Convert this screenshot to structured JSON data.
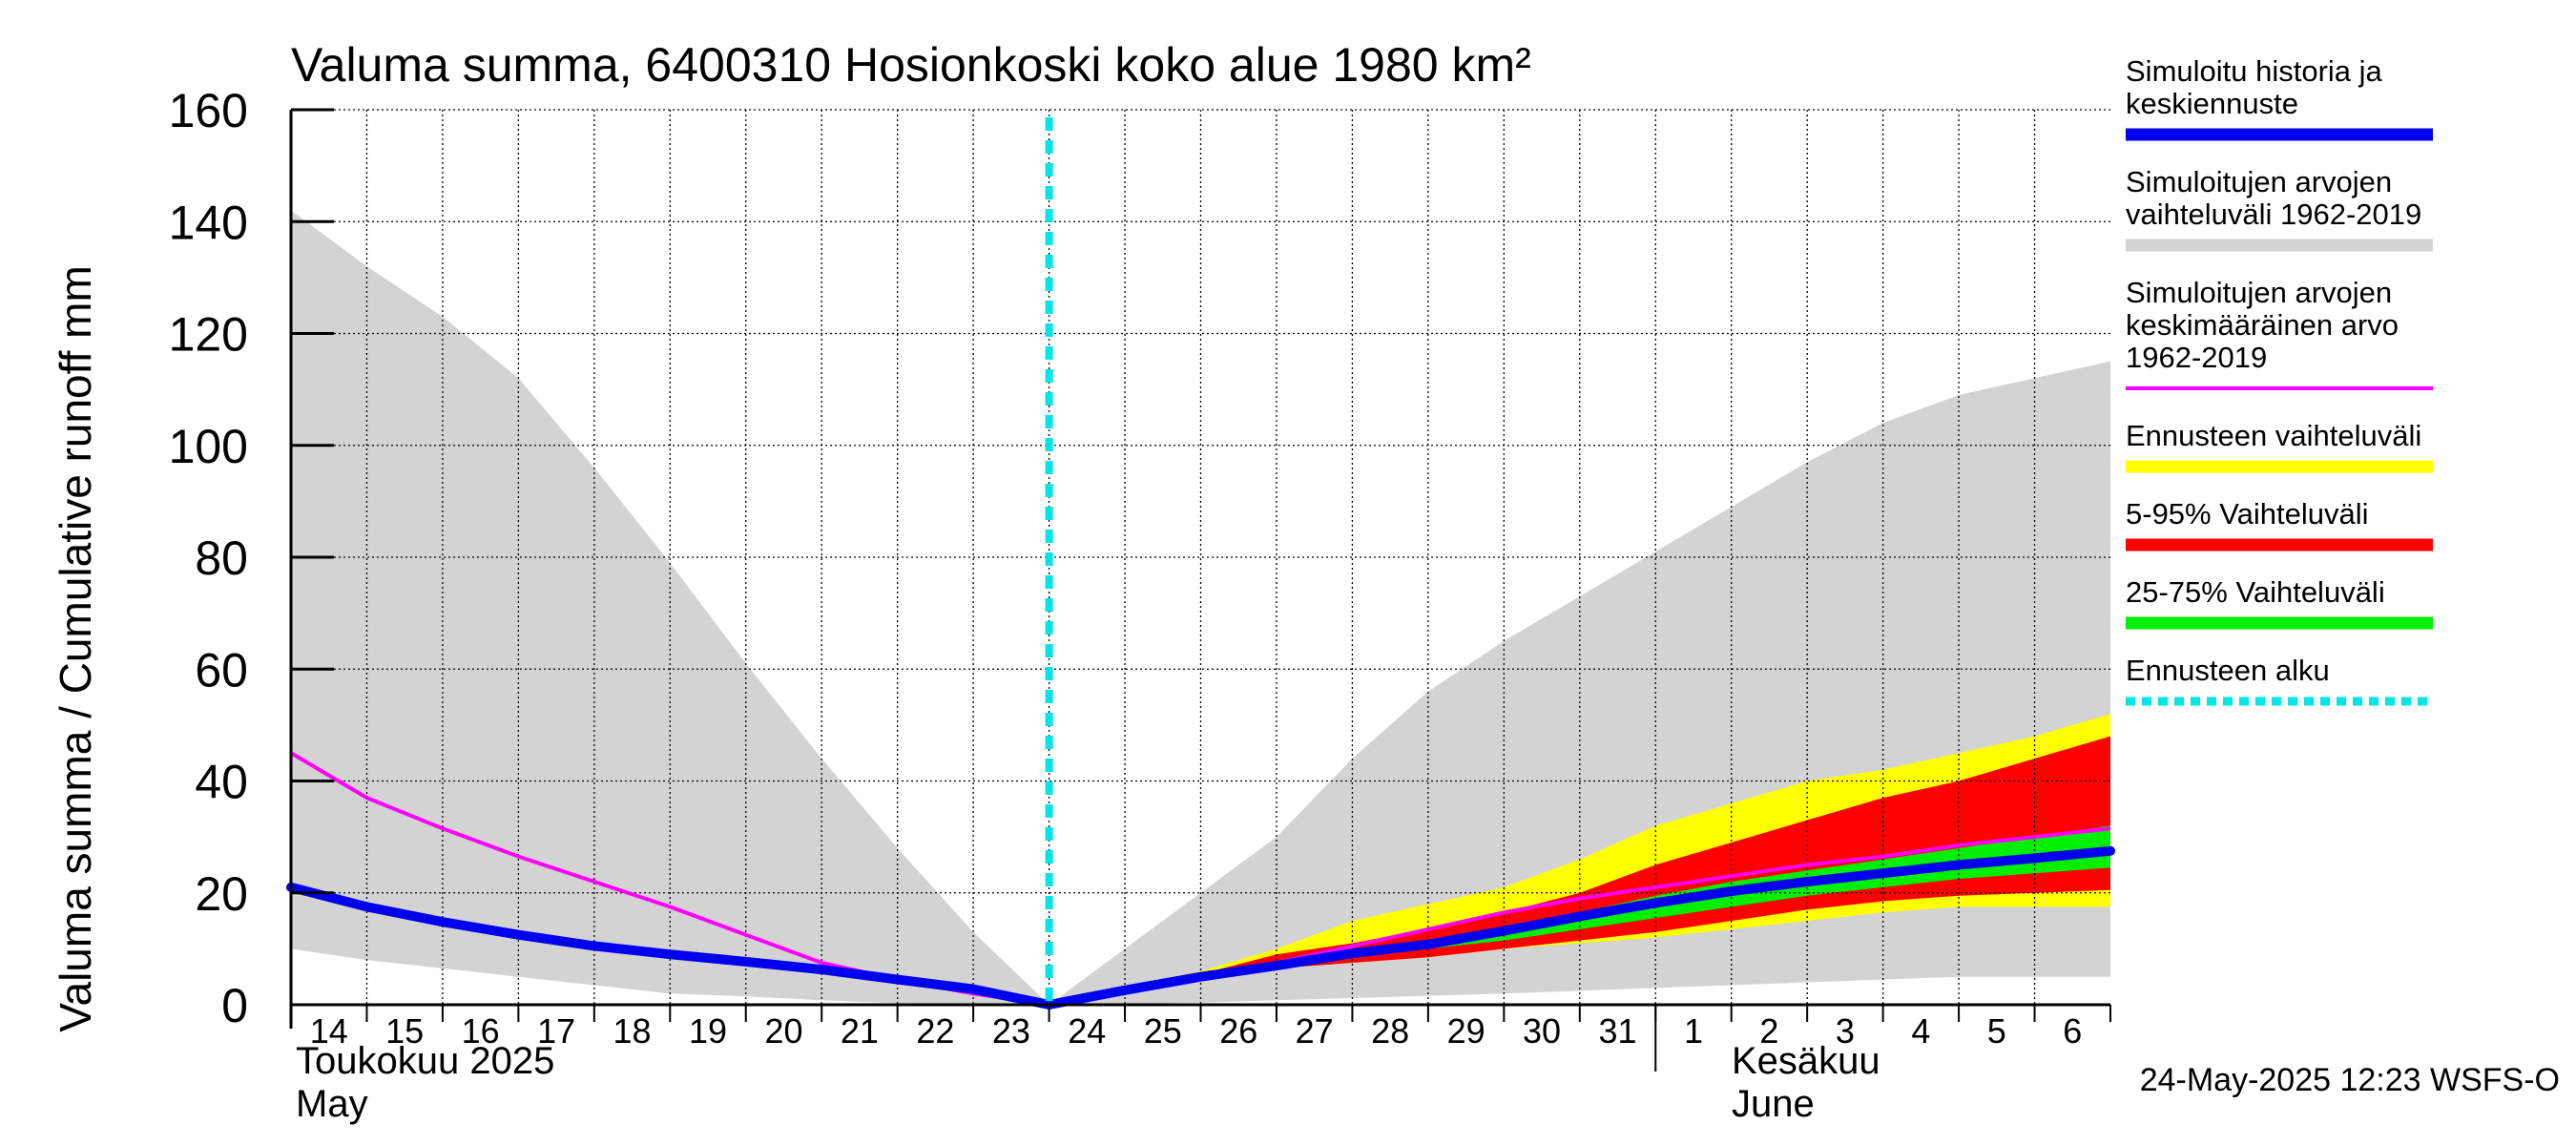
{
  "chart_data": {
    "type": "area",
    "title": "Valuma summa, 6400310 Hosionkoski koko alue 1980 km²",
    "ylabel": "Valuma summa / Cumulative runoff    mm",
    "ylim": [
      0,
      160
    ],
    "yticks": [
      0,
      20,
      40,
      60,
      80,
      100,
      120,
      140,
      160
    ],
    "x_day_labels": [
      "14",
      "15",
      "16",
      "17",
      "18",
      "19",
      "20",
      "21",
      "22",
      "23",
      "24",
      "25",
      "26",
      "27",
      "28",
      "29",
      "30",
      "31",
      "1",
      "2",
      "3",
      "4",
      "5",
      "6"
    ],
    "month_labels": {
      "may_fi": "Toukokuu  2025",
      "may_en": "May",
      "june_fi": "Kesäkuu",
      "june_en": "June"
    },
    "forecast_start_day": 10.0,
    "footer": "24-May-2025 12:23 WSFS-O",
    "colors": {
      "history": "#0000ee",
      "range_hist": "#d3d3d3",
      "mean_hist": "#ff00ff",
      "forecast_range": "#ffff00",
      "p5_95": "#ff0000",
      "p25_75": "#00ee00",
      "forecast_start": "#00e5e5"
    },
    "legend": [
      {
        "key": "history",
        "label": "Simuloitu historia ja keskiennuste",
        "lines": [
          "Simuloitu historia ja",
          "keskiennuste"
        ],
        "style": "solid"
      },
      {
        "key": "range_hist",
        "label": "Simuloitujen arvojen vaihteluväli 1962-2019",
        "lines": [
          "Simuloitujen arvojen",
          "vaihteluväli 1962-2019"
        ],
        "style": "solid"
      },
      {
        "key": "mean_hist",
        "label": "Simuloitujen arvojen keskimääräinen arvo 1962-2019",
        "lines": [
          "Simuloitujen arvojen",
          "keskimääräinen arvo",
          "   1962-2019"
        ],
        "style": "thin"
      },
      {
        "key": "forecast_range",
        "label": "Ennusteen vaihteluväli",
        "lines": [
          "Ennusteen vaihteluväli"
        ],
        "style": "solid"
      },
      {
        "key": "p5_95",
        "label": "5-95% Vaihteluväli",
        "lines": [
          "5-95% Vaihteluväli"
        ],
        "style": "solid"
      },
      {
        "key": "p25_75",
        "label": "25-75% Vaihteluväli",
        "lines": [
          "25-75% Vaihteluväli"
        ],
        "style": "solid"
      },
      {
        "key": "forecast_start",
        "label": "Ennusteen alku",
        "lines": [
          "Ennusteen alku"
        ],
        "style": "dashed"
      }
    ],
    "series": {
      "range_hist": {
        "x": [
          0,
          1,
          2,
          3,
          4,
          5,
          6,
          7,
          8,
          9,
          10,
          11,
          12,
          13,
          14,
          15,
          16,
          17,
          18,
          19,
          20,
          21,
          22,
          23,
          24
        ],
        "upper": [
          142,
          132,
          123,
          112,
          96,
          79,
          61,
          44,
          28,
          13,
          0,
          10,
          20,
          30,
          44,
          56,
          65,
          73,
          81,
          89,
          97,
          104,
          109,
          112,
          115
        ],
        "lower": [
          10,
          8,
          6.5,
          5,
          3.5,
          2,
          1.5,
          0.8,
          0.3,
          0.1,
          0,
          0.1,
          0.4,
          0.8,
          1.2,
          1.6,
          2,
          2.5,
          3,
          3.5,
          4,
          4.5,
          5,
          5,
          5
        ]
      },
      "forecast_range": {
        "x": [
          10,
          11,
          12,
          13,
          14,
          15,
          16,
          17,
          18,
          19,
          20,
          21,
          22,
          23,
          24
        ],
        "upper": [
          0,
          3,
          6,
          10,
          15,
          18,
          21,
          26,
          32,
          36,
          40,
          42,
          45,
          48,
          52
        ],
        "lower": [
          0,
          2.5,
          5,
          6.5,
          7.5,
          8.5,
          10,
          11,
          12,
          13.5,
          15,
          16.5,
          17.5,
          17.5,
          17.5
        ]
      },
      "p5_95": {
        "x": [
          10,
          11,
          12,
          13,
          14,
          15,
          16,
          17,
          18,
          19,
          20,
          21,
          22,
          23,
          24
        ],
        "upper": [
          0,
          3,
          5.5,
          9,
          11,
          13.5,
          16.5,
          20,
          25,
          29,
          33,
          37,
          40,
          44,
          48
        ],
        "lower": [
          0,
          2.5,
          5,
          6.5,
          7.5,
          8.5,
          10,
          11.5,
          13,
          15,
          17,
          18.5,
          19.5,
          20,
          20.5
        ]
      },
      "p25_75": {
        "x": [
          10,
          11,
          12,
          13,
          14,
          15,
          16,
          17,
          18,
          19,
          20,
          21,
          22,
          23,
          24
        ],
        "upper": [
          0,
          2.8,
          5.2,
          7.5,
          9.5,
          11.5,
          14,
          16.5,
          19.5,
          22,
          24,
          26,
          28,
          30,
          32
        ],
        "lower": [
          0,
          2.6,
          5.1,
          7,
          8.5,
          10,
          11.5,
          13.5,
          15.5,
          17.5,
          19.5,
          21,
          22.5,
          23.5,
          24.5
        ]
      },
      "mean_hist": {
        "x": [
          0,
          1,
          2,
          3,
          4,
          5,
          6,
          7,
          8,
          9,
          10,
          11,
          12,
          13,
          14,
          15,
          16,
          17,
          18,
          19,
          20,
          21,
          22,
          23,
          24
        ],
        "y": [
          45,
          37,
          31.5,
          26.5,
          22,
          17.5,
          12.5,
          7.5,
          4.5,
          2,
          0,
          2.7,
          5.1,
          7.5,
          10.5,
          13.5,
          16.5,
          19,
          21,
          23,
          25,
          26.5,
          28.5,
          30,
          31.5
        ]
      },
      "history": {
        "x": [
          0,
          1,
          2,
          3,
          4,
          5,
          6,
          7,
          8,
          9,
          10,
          11,
          12,
          13,
          14,
          15,
          16,
          17,
          18,
          19,
          20,
          21,
          22,
          23,
          24
        ],
        "y": [
          21,
          17.5,
          14.8,
          12.5,
          10.5,
          9,
          7.7,
          6.3,
          4.5,
          2.8,
          0,
          2.6,
          5,
          7,
          9.2,
          10.8,
          13.2,
          15.8,
          18.2,
          20.3,
          22,
          23.5,
          25,
          26.2,
          27.5
        ]
      }
    }
  }
}
